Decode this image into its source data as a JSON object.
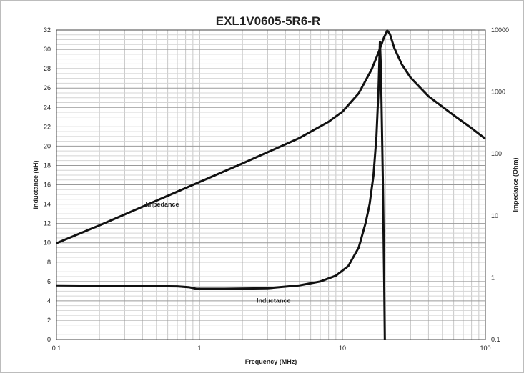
{
  "chart_data": {
    "type": "line",
    "title": "EXL1V0605-5R6-R",
    "xlabel": "Frequency (MHz)",
    "ylabel_left": "Inductance (uH)",
    "ylabel_right": "Impedance (Ohm)",
    "x_scale": "log",
    "xlim": [
      0.1,
      100
    ],
    "ylim_left": [
      0,
      32
    ],
    "ylim_right": [
      0.1,
      10000
    ],
    "y_right_scale": "log",
    "grid": true,
    "x_ticks": [
      "0.1",
      "1",
      "10",
      "100"
    ],
    "y_left_ticks": [
      "0",
      "2",
      "4",
      "6",
      "8",
      "10",
      "12",
      "14",
      "16",
      "18",
      "20",
      "22",
      "24",
      "26",
      "28",
      "30",
      "32"
    ],
    "y_right_ticks": [
      "0.1",
      "1",
      "10",
      "100",
      "1000",
      "10000"
    ],
    "annotations": [
      {
        "text": "Impedance",
        "series": "Impedance"
      },
      {
        "text": "Inductance",
        "series": "Inductance"
      }
    ],
    "series": [
      {
        "name": "Impedance",
        "axis": "right",
        "points": [
          [
            0.1,
            3.6
          ],
          [
            0.2,
            7.0
          ],
          [
            0.5,
            17.5
          ],
          [
            1,
            35
          ],
          [
            2,
            70
          ],
          [
            5,
            180
          ],
          [
            8,
            330
          ],
          [
            10,
            480
          ],
          [
            13,
            950
          ],
          [
            16,
            2300
          ],
          [
            18,
            4500
          ],
          [
            19.5,
            7500
          ],
          [
            20.6,
            9800
          ],
          [
            21.5,
            8600
          ],
          [
            23,
            5200
          ],
          [
            26,
            2800
          ],
          [
            30,
            1700
          ],
          [
            40,
            850
          ],
          [
            60,
            420
          ],
          [
            80,
            260
          ],
          [
            100,
            175
          ]
        ]
      },
      {
        "name": "Inductance",
        "axis": "left",
        "points": [
          [
            0.1,
            5.6
          ],
          [
            0.3,
            5.55
          ],
          [
            0.7,
            5.5
          ],
          [
            0.85,
            5.4
          ],
          [
            0.95,
            5.25
          ],
          [
            1.5,
            5.25
          ],
          [
            3,
            5.3
          ],
          [
            5,
            5.6
          ],
          [
            7,
            6.0
          ],
          [
            9,
            6.6
          ],
          [
            11,
            7.6
          ],
          [
            13,
            9.5
          ],
          [
            14.5,
            12.0
          ],
          [
            15.5,
            14.0
          ],
          [
            16.5,
            17.0
          ],
          [
            17.3,
            21.0
          ],
          [
            17.9,
            26.0
          ],
          [
            18.3,
            30.8
          ],
          [
            18.6,
            28.0
          ],
          [
            19.2,
            16.0
          ],
          [
            19.6,
            6.0
          ],
          [
            19.8,
            0
          ]
        ]
      }
    ]
  }
}
